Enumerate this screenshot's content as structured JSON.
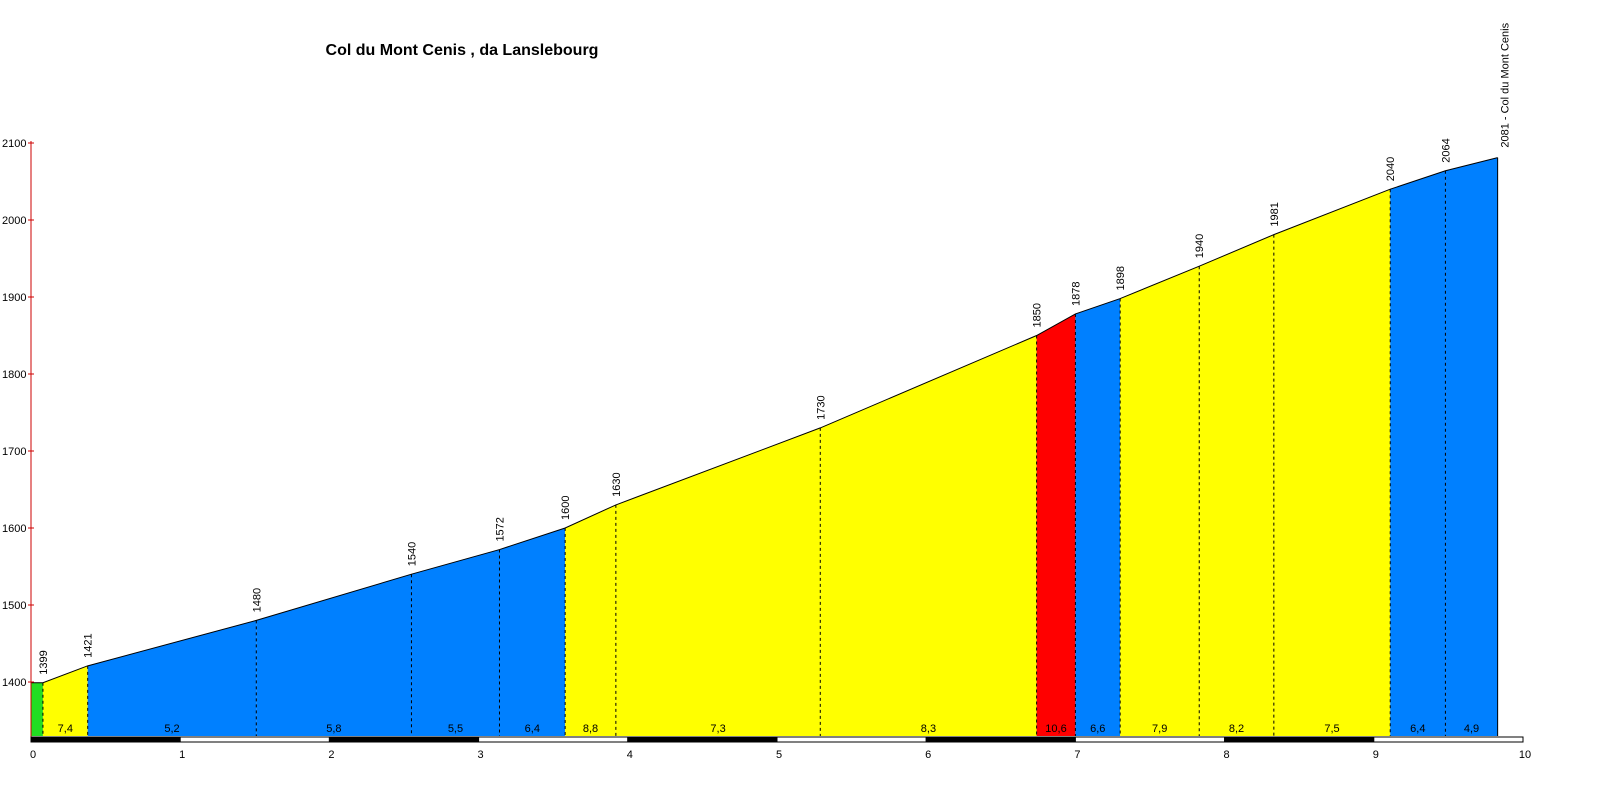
{
  "chart_data": {
    "type": "area",
    "title": "Col du Mont Cenis , da Lanslebourg",
    "xlabel": "",
    "ylabel": "",
    "xlim": [
      0,
      10
    ],
    "ylim": [
      1330,
      2100
    ],
    "y_ticks": [
      "1400",
      "1500",
      "1600",
      "1700",
      "1800",
      "1900",
      "2000",
      "2100"
    ],
    "x_ticks": [
      "0",
      "1",
      "2",
      "3",
      "4",
      "5",
      "6",
      "7",
      "8",
      "9",
      "10"
    ],
    "grid": false,
    "legend": "none",
    "summit_label": "2081 - Col du Mont Cenis",
    "points": [
      {
        "x": 0.0,
        "y": 1399,
        "label": ""
      },
      {
        "x": 0.08,
        "y": 1399,
        "label": "1399"
      },
      {
        "x": 0.38,
        "y": 1421,
        "label": "1421"
      },
      {
        "x": 1.51,
        "y": 1480,
        "label": "1480"
      },
      {
        "x": 2.55,
        "y": 1540,
        "label": "1540"
      },
      {
        "x": 3.14,
        "y": 1572,
        "label": "1572"
      },
      {
        "x": 3.58,
        "y": 1600,
        "label": "1600"
      },
      {
        "x": 3.92,
        "y": 1630,
        "label": "1630"
      },
      {
        "x": 5.29,
        "y": 1730,
        "label": "1730"
      },
      {
        "x": 6.74,
        "y": 1850,
        "label": "1850"
      },
      {
        "x": 7.0,
        "y": 1878,
        "label": "1878"
      },
      {
        "x": 7.3,
        "y": 1898,
        "label": "1898"
      },
      {
        "x": 7.83,
        "y": 1940,
        "label": "1940"
      },
      {
        "x": 8.33,
        "y": 1981,
        "label": "1981"
      },
      {
        "x": 9.11,
        "y": 2040,
        "label": "2040"
      },
      {
        "x": 9.48,
        "y": 2064,
        "label": "2064"
      },
      {
        "x": 9.83,
        "y": 2081,
        "label": ""
      }
    ],
    "segments": [
      {
        "from": 0.0,
        "to": 0.08,
        "gradient": "",
        "color": "#22dd22"
      },
      {
        "from": 0.08,
        "to": 0.38,
        "gradient": "7,4",
        "color": "#ffff00"
      },
      {
        "from": 0.38,
        "to": 1.51,
        "gradient": "5,2",
        "color": "#0080ff"
      },
      {
        "from": 1.51,
        "to": 2.55,
        "gradient": "5,8",
        "color": "#0080ff"
      },
      {
        "from": 2.55,
        "to": 3.14,
        "gradient": "5,5",
        "color": "#0080ff"
      },
      {
        "from": 3.14,
        "to": 3.58,
        "gradient": "6,4",
        "color": "#0080ff"
      },
      {
        "from": 3.58,
        "to": 3.92,
        "gradient": "8,8",
        "color": "#ffff00"
      },
      {
        "from": 3.92,
        "to": 5.29,
        "gradient": "7,3",
        "color": "#ffff00"
      },
      {
        "from": 5.29,
        "to": 6.74,
        "gradient": "8,3",
        "color": "#ffff00"
      },
      {
        "from": 6.74,
        "to": 7.0,
        "gradient": "10,6",
        "color": "#ff0000"
      },
      {
        "from": 7.0,
        "to": 7.3,
        "gradient": "6,6",
        "color": "#0080ff"
      },
      {
        "from": 7.3,
        "to": 7.83,
        "gradient": "7,9",
        "color": "#ffff00"
      },
      {
        "from": 7.83,
        "to": 8.33,
        "gradient": "8,2",
        "color": "#ffff00"
      },
      {
        "from": 8.33,
        "to": 9.11,
        "gradient": "7,5",
        "color": "#ffff00"
      },
      {
        "from": 9.11,
        "to": 9.48,
        "gradient": "6,4",
        "color": "#0080ff"
      },
      {
        "from": 9.48,
        "to": 9.83,
        "gradient": "4,9",
        "color": "#0080ff"
      }
    ]
  }
}
